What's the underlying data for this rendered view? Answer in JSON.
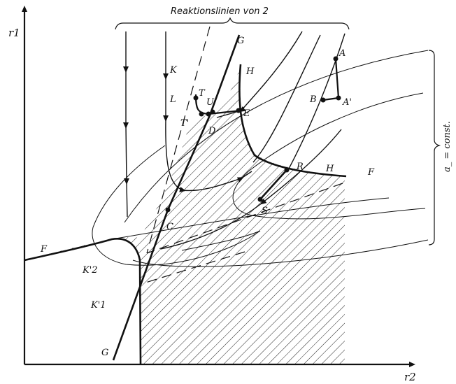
{
  "figure": {
    "title": "Reaktionslinien von 2",
    "axes": {
      "y_label": "r1",
      "x_label": "r2"
    },
    "bracket_label": "a_ = const.",
    "curve_labels": {
      "G_top": "G",
      "G_bottom": "G",
      "H_top": "H",
      "H_right": "H",
      "F_left": "F",
      "F_right": "F",
      "K": "K",
      "L": "L",
      "K2": "K'2",
      "K1": "K'1"
    },
    "point_labels": {
      "A": "A",
      "A_prime": "A'",
      "B": "B",
      "T": "T",
      "T_prime": "T'",
      "U": "U",
      "D": "D",
      "E": "E",
      "C": "C",
      "R": "R",
      "S": "S"
    }
  }
}
